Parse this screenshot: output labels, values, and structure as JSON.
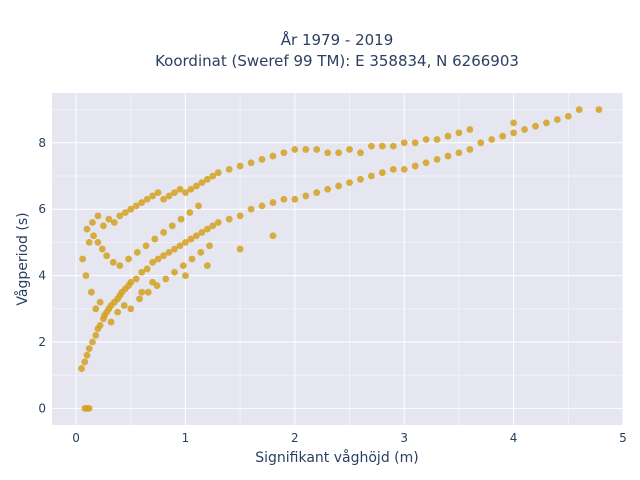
{
  "chart_data": {
    "type": "scatter",
    "title_lines": [
      "År 1979 - 2019",
      "Koordinat (Sweref 99 TM): E 358834, N 6266903"
    ],
    "xlabel": "Signifikant våghöjd (m)",
    "ylabel": "Vågperiod (s)",
    "xlim": [
      -0.22,
      5.0
    ],
    "ylim": [
      -0.5,
      9.5
    ],
    "xticks": [
      0,
      1,
      2,
      3,
      4,
      5
    ],
    "yticks": [
      0,
      2,
      4,
      6,
      8
    ],
    "grid": true,
    "marker_color": "#d4a020",
    "background_color": "#e5e6f0",
    "series": [
      {
        "x": [
          0.05,
          0.08,
          0.1,
          0.1,
          0.12,
          0.15,
          0.15,
          0.18,
          0.2,
          0.2,
          0.22,
          0.25,
          0.25,
          0.28,
          0.3,
          0.3,
          0.32,
          0.35,
          0.35,
          0.38,
          0.4,
          0.4,
          0.42,
          0.45,
          0.45,
          0.48,
          0.5,
          0.5,
          0.55,
          0.55,
          0.6,
          0.6,
          0.65,
          0.65,
          0.7,
          0.7,
          0.75,
          0.75,
          0.8,
          0.8,
          0.85,
          0.85,
          0.9,
          0.9,
          0.95,
          0.95,
          1.0,
          1.0,
          1.05,
          1.05,
          1.1,
          1.1,
          1.15,
          1.15,
          1.2,
          1.2,
          1.25,
          1.25,
          1.3,
          1.3,
          1.4,
          1.4,
          1.5,
          1.5,
          1.6,
          1.6,
          1.7,
          1.7,
          1.8,
          1.8,
          1.9,
          1.9,
          2.0,
          2.0,
          2.1,
          2.1,
          2.2,
          2.2,
          2.3,
          2.3,
          2.4,
          2.4,
          2.5,
          2.5,
          2.6,
          2.6,
          2.7,
          2.7,
          2.8,
          2.8,
          2.9,
          2.9,
          3.0,
          3.0,
          3.1,
          3.1,
          3.2,
          3.2,
          3.3,
          3.3,
          3.4,
          3.4,
          3.5,
          3.5,
          3.6,
          3.6,
          3.7,
          3.8,
          3.9,
          4.0,
          4.0,
          4.1,
          4.2,
          4.3,
          4.4,
          4.5,
          4.6,
          4.78,
          0.08,
          0.1,
          0.12,
          0.06,
          0.09,
          0.14,
          0.18,
          0.22,
          0.26,
          0.32,
          0.38,
          0.44,
          0.5,
          0.58,
          0.66,
          0.74,
          0.82,
          0.9,
          0.98,
          1.06,
          1.14,
          1.22,
          0.12,
          0.16,
          0.2,
          0.24,
          0.28,
          0.34,
          0.4,
          0.48,
          0.56,
          0.64,
          0.72,
          0.8,
          0.88,
          0.96,
          1.04,
          1.12,
          0.6,
          0.7,
          1.0,
          1.2,
          1.5,
          1.8
        ],
        "y": [
          1.2,
          1.4,
          1.6,
          5.4,
          1.8,
          2.0,
          5.6,
          2.2,
          2.4,
          5.8,
          2.5,
          2.7,
          5.5,
          2.9,
          3.0,
          5.7,
          3.1,
          3.2,
          5.6,
          3.3,
          3.4,
          5.8,
          3.5,
          3.6,
          5.9,
          3.7,
          3.8,
          6.0,
          3.9,
          6.1,
          4.1,
          6.2,
          4.2,
          6.3,
          4.4,
          6.4,
          4.5,
          6.5,
          4.6,
          6.3,
          4.7,
          6.4,
          4.8,
          6.5,
          4.9,
          6.6,
          5.0,
          6.5,
          5.1,
          6.6,
          5.2,
          6.7,
          5.3,
          6.8,
          5.4,
          6.9,
          5.5,
          7.0,
          5.6,
          7.1,
          5.7,
          7.2,
          5.8,
          7.3,
          6.0,
          7.4,
          6.1,
          7.5,
          6.2,
          7.6,
          6.3,
          7.7,
          6.3,
          7.8,
          6.4,
          7.8,
          6.5,
          7.8,
          6.6,
          7.7,
          6.7,
          7.7,
          6.8,
          7.8,
          6.9,
          7.7,
          7.0,
          7.9,
          7.1,
          7.9,
          7.2,
          7.9,
          7.2,
          8.0,
          7.3,
          8.0,
          7.4,
          8.1,
          7.5,
          8.1,
          7.6,
          8.2,
          7.7,
          8.3,
          7.8,
          8.4,
          8.0,
          8.1,
          8.2,
          8.3,
          8.6,
          8.4,
          8.5,
          8.6,
          8.7,
          8.8,
          9.0,
          9.0,
          0.0,
          0.0,
          0.0,
          4.5,
          4.0,
          3.5,
          3.0,
          3.2,
          2.8,
          2.6,
          2.9,
          3.1,
          3.0,
          3.3,
          3.5,
          3.7,
          3.9,
          4.1,
          4.3,
          4.5,
          4.7,
          4.9,
          5.0,
          5.2,
          5.0,
          4.8,
          4.6,
          4.4,
          4.3,
          4.5,
          4.7,
          4.9,
          5.1,
          5.3,
          5.5,
          5.7,
          5.9,
          6.1,
          3.5,
          3.8,
          4.0,
          4.3,
          4.8,
          5.2
        ]
      }
    ]
  }
}
